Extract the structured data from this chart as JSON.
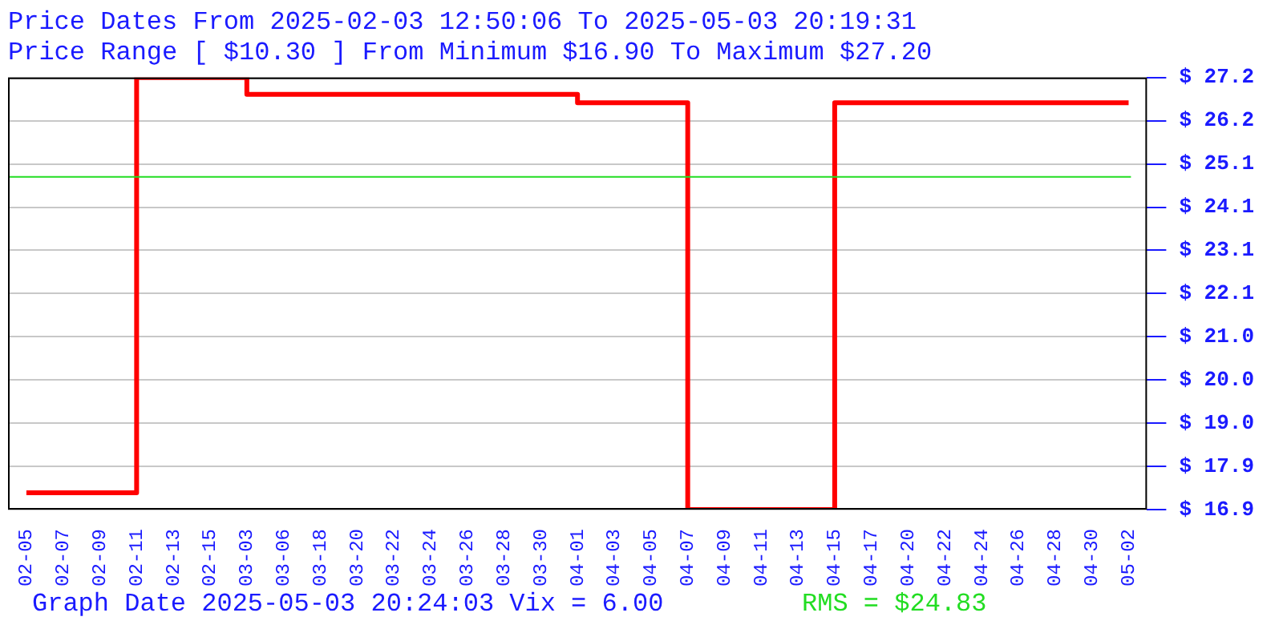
{
  "chart_data": {
    "type": "step",
    "title": [
      "Price Dates From 2025-02-03 12:50:06 To 2025-05-03 20:19:31",
      "Price Range [ $10.30 ] From Minimum $16.90 To Maximum $27.20"
    ],
    "categories": [
      "02-05",
      "02-07",
      "02-09",
      "02-11",
      "02-13",
      "02-15",
      "03-03",
      "03-06",
      "03-18",
      "03-20",
      "03-22",
      "03-24",
      "03-26",
      "03-28",
      "03-30",
      "04-01",
      "04-03",
      "04-05",
      "04-07",
      "04-09",
      "04-11",
      "04-13",
      "04-15",
      "04-17",
      "04-20",
      "04-22",
      "04-24",
      "04-26",
      "04-28",
      "04-30",
      "05-02"
    ],
    "series": [
      {
        "color": "#ff0000",
        "values": [
          17.3,
          17.3,
          17.3,
          27.2,
          27.2,
          27.2,
          26.8,
          26.8,
          26.8,
          26.8,
          26.8,
          26.8,
          26.8,
          26.8,
          26.8,
          26.6,
          26.6,
          26.6,
          16.9,
          16.9,
          16.9,
          16.9,
          26.6,
          26.6,
          26.6,
          26.6,
          26.6,
          26.6,
          26.6,
          26.6,
          26.6
        ]
      }
    ],
    "ylim": [
      16.9,
      27.2
    ],
    "yticks": [
      {
        "value": 16.9,
        "label": "$ 16.9"
      },
      {
        "value": 17.93,
        "label": "$ 17.9"
      },
      {
        "value": 18.96,
        "label": "$ 19.0"
      },
      {
        "value": 19.99,
        "label": "$ 20.0"
      },
      {
        "value": 21.02,
        "label": "$ 21.0"
      },
      {
        "value": 22.05,
        "label": "$ 22.1"
      },
      {
        "value": 23.08,
        "label": "$ 23.1"
      },
      {
        "value": 24.11,
        "label": "$ 24.1"
      },
      {
        "value": 25.14,
        "label": "$ 25.1"
      },
      {
        "value": 26.17,
        "label": "$ 26.2"
      },
      {
        "value": 27.2,
        "label": "$ 27.2"
      }
    ],
    "ref_lines": [
      {
        "axis": "y",
        "value": 24.83,
        "label": "RMS = $24.83",
        "color": "#22dd22"
      }
    ],
    "annotations": [
      "Graph Date 2025-05-03 20:24:03 Vix = 6.00"
    ],
    "grid": "y",
    "legend": false,
    "marker": "none",
    "line_style": "solid"
  }
}
